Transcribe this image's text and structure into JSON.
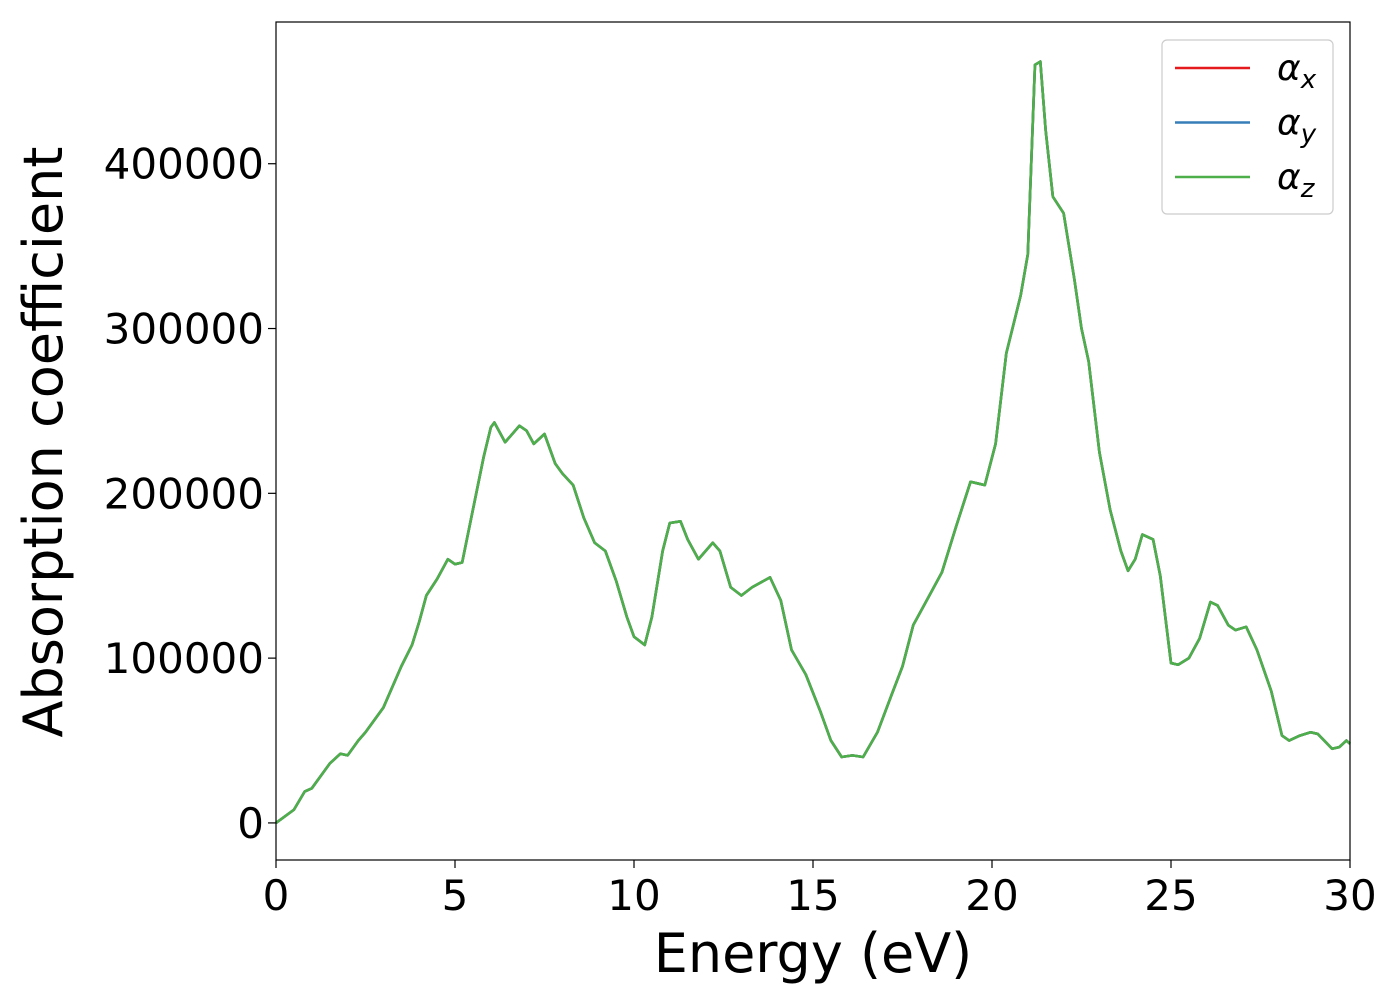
{
  "chart_data": {
    "type": "line",
    "xlabel": "Energy (eV)",
    "ylabel": "Absorption coefficient",
    "x": [
      0,
      0.5,
      0.8,
      1.0,
      1.3,
      1.5,
      1.8,
      2.0,
      2.3,
      2.5,
      3.0,
      3.5,
      3.8,
      4.0,
      4.2,
      4.5,
      4.8,
      5.0,
      5.2,
      5.5,
      5.8,
      6.0,
      6.1,
      6.4,
      6.8,
      7.0,
      7.2,
      7.5,
      7.8,
      8.0,
      8.3,
      8.6,
      8.9,
      9.2,
      9.5,
      9.8,
      10.0,
      10.3,
      10.5,
      10.8,
      11.0,
      11.3,
      11.5,
      11.8,
      12.2,
      12.4,
      12.7,
      13.0,
      13.3,
      13.8,
      14.1,
      14.4,
      14.8,
      15.2,
      15.5,
      15.8,
      16.1,
      16.4,
      16.8,
      17.2,
      17.5,
      17.8,
      18.0,
      18.3,
      18.6,
      19.0,
      19.4,
      19.6,
      19.8,
      20.1,
      20.4,
      20.8,
      21.0,
      21.2,
      21.35,
      21.5,
      21.7,
      22.0,
      22.3,
      22.5,
      22.7,
      23.0,
      23.3,
      23.6,
      23.8,
      24.0,
      24.2,
      24.5,
      24.7,
      25.0,
      25.2,
      25.5,
      25.8,
      26.1,
      26.3,
      26.6,
      26.8,
      27.1,
      27.4,
      27.8,
      28.1,
      28.3,
      28.6,
      28.9,
      29.1,
      29.5,
      29.7,
      29.9,
      30.0
    ],
    "series": [
      {
        "name": "αx",
        "color": "#e41a1c",
        "values": [
          0,
          8000,
          19000,
          21000,
          30000,
          36000,
          42000,
          41000,
          50000,
          55000,
          70000,
          95000,
          108000,
          122000,
          138000,
          148000,
          160000,
          157000,
          158000,
          190000,
          222000,
          240000,
          243000,
          231000,
          241000,
          238000,
          230000,
          236000,
          218000,
          212000,
          205000,
          185000,
          170000,
          165000,
          147000,
          125000,
          113000,
          108000,
          125000,
          165000,
          182000,
          183000,
          172000,
          160000,
          170000,
          165000,
          143000,
          138000,
          143000,
          149000,
          135000,
          105000,
          90000,
          68000,
          50000,
          40000,
          41000,
          40000,
          55000,
          78000,
          95000,
          120000,
          128000,
          140000,
          152000,
          180000,
          207000,
          206000,
          205000,
          230000,
          285000,
          320000,
          345000,
          460000,
          462000,
          420000,
          380000,
          370000,
          330000,
          300000,
          280000,
          225000,
          190000,
          165000,
          153000,
          160000,
          175000,
          172000,
          150000,
          97000,
          96000,
          100000,
          112000,
          134000,
          132000,
          120000,
          117000,
          119000,
          105000,
          80000,
          53000,
          50000,
          53000,
          55000,
          54000,
          45000,
          46000,
          50000,
          48000
        ]
      },
      {
        "name": "αy",
        "color": "#377eb8",
        "values": [
          0,
          8000,
          19000,
          21000,
          30000,
          36000,
          42000,
          41000,
          50000,
          55000,
          70000,
          95000,
          108000,
          122000,
          138000,
          148000,
          160000,
          157000,
          158000,
          190000,
          222000,
          240000,
          243000,
          231000,
          241000,
          238000,
          230000,
          236000,
          218000,
          212000,
          205000,
          185000,
          170000,
          165000,
          147000,
          125000,
          113000,
          108000,
          125000,
          165000,
          182000,
          183000,
          172000,
          160000,
          170000,
          165000,
          143000,
          138000,
          143000,
          149000,
          135000,
          105000,
          90000,
          68000,
          50000,
          40000,
          41000,
          40000,
          55000,
          78000,
          95000,
          120000,
          128000,
          140000,
          152000,
          180000,
          207000,
          206000,
          205000,
          230000,
          285000,
          320000,
          345000,
          460000,
          462000,
          420000,
          380000,
          370000,
          330000,
          300000,
          280000,
          225000,
          190000,
          165000,
          153000,
          160000,
          175000,
          172000,
          150000,
          97000,
          96000,
          100000,
          112000,
          134000,
          132000,
          120000,
          117000,
          119000,
          105000,
          80000,
          53000,
          50000,
          53000,
          55000,
          54000,
          45000,
          46000,
          50000,
          48000
        ]
      },
      {
        "name": "αz",
        "color": "#4daf4a",
        "values": [
          0,
          8000,
          19000,
          21000,
          30000,
          36000,
          42000,
          41000,
          50000,
          55000,
          70000,
          95000,
          108000,
          122000,
          138000,
          148000,
          160000,
          157000,
          158000,
          190000,
          222000,
          240000,
          243000,
          231000,
          241000,
          238000,
          230000,
          236000,
          218000,
          212000,
          205000,
          185000,
          170000,
          165000,
          147000,
          125000,
          113000,
          108000,
          125000,
          165000,
          182000,
          183000,
          172000,
          160000,
          170000,
          165000,
          143000,
          138000,
          143000,
          149000,
          135000,
          105000,
          90000,
          68000,
          50000,
          40000,
          41000,
          40000,
          55000,
          78000,
          95000,
          120000,
          128000,
          140000,
          152000,
          180000,
          207000,
          206000,
          205000,
          230000,
          285000,
          320000,
          345000,
          460000,
          462000,
          420000,
          380000,
          370000,
          330000,
          300000,
          280000,
          225000,
          190000,
          165000,
          153000,
          160000,
          175000,
          172000,
          150000,
          97000,
          96000,
          100000,
          112000,
          134000,
          132000,
          120000,
          117000,
          119000,
          105000,
          80000,
          53000,
          50000,
          53000,
          55000,
          54000,
          45000,
          46000,
          50000,
          48000
        ]
      }
    ],
    "xlim": [
      0,
      30
    ],
    "xticks": [
      0,
      5,
      10,
      15,
      20,
      25,
      30
    ],
    "ylim": [
      -22500,
      486000
    ],
    "yticks": [
      0,
      100000,
      200000,
      300000,
      400000
    ],
    "legend": "upper right"
  }
}
